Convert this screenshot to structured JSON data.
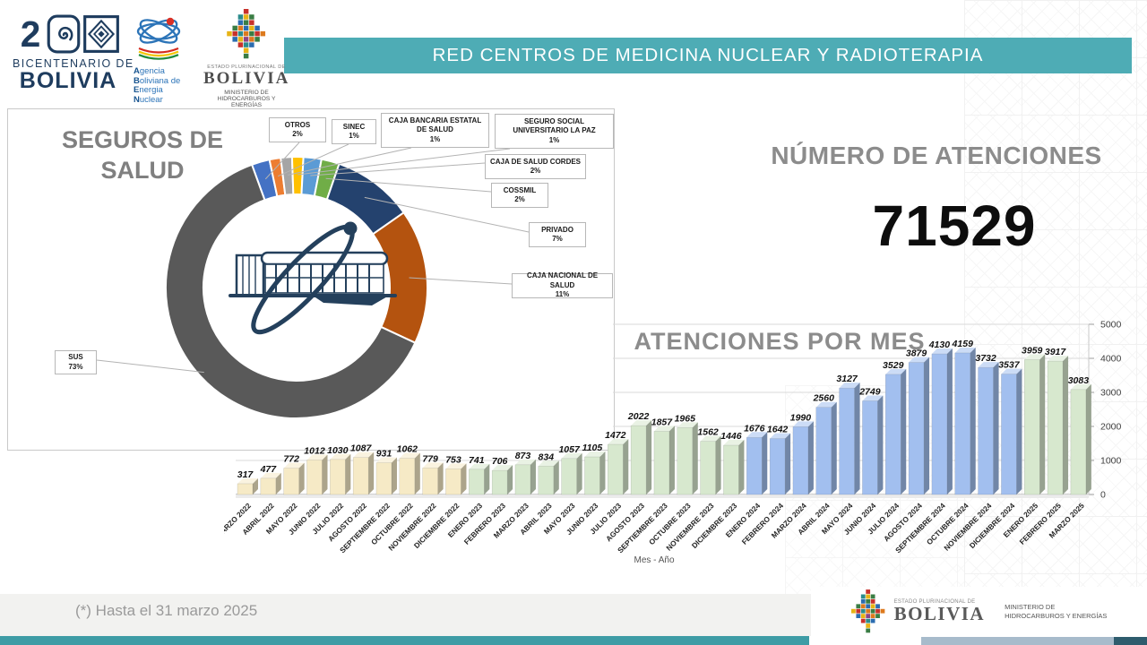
{
  "header": {
    "title": "RED CENTROS DE MEDICINA NUCLEAR Y RADIOTERAPIA",
    "accent_color": "#4EACB5"
  },
  "logos": {
    "bicentenario": {
      "icon": "bicentenario-200-logo",
      "line1": "BICENTENARIO DE",
      "line2": "BOLIVIA"
    },
    "aben": {
      "icon": "atom-logo",
      "line1": "Agencia",
      "line2": "Boliviana de",
      "line3": "Energia",
      "line4": "Nuclear"
    },
    "ministerio": {
      "icon": "chakana-logo",
      "estado": "ESTADO PLURINACIONAL DE",
      "bolivia": "BOLIVIA",
      "ministerio_line1": "MINISTERIO DE",
      "ministerio_line2": "HIDROCARBUROS Y ENERGÍAS"
    }
  },
  "kpi": {
    "title": "NÚMERO DE ATENCIONES",
    "value": "71529"
  },
  "chart_data": [
    {
      "type": "pie",
      "subtype": "donut",
      "title": "SEGUROS DE SALUD",
      "unit": "%",
      "segments": [
        {
          "label": "OTROS",
          "value": 2,
          "pct_label": "2%",
          "color": "#4472C4"
        },
        {
          "label": "SINEC",
          "value": 1,
          "pct_label": "1%",
          "color": "#ED7D31"
        },
        {
          "label": "CAJA BANCARIA ESTATAL DE SALUD",
          "value": 1,
          "pct_label": "1%",
          "color": "#A5A5A5"
        },
        {
          "label": "SEGURO SOCIAL UNIVERSITARIO LA PAZ",
          "value": 1,
          "pct_label": "1%",
          "color": "#FFC000"
        },
        {
          "label": "CAJA DE SALUD CORDES",
          "value": 2,
          "pct_label": "2%",
          "color": "#5B9BD5"
        },
        {
          "label": "COSSMIL",
          "value": 2,
          "pct_label": "2%",
          "color": "#70AD47"
        },
        {
          "label": "PRIVADO",
          "value": 7,
          "pct_label": "7%",
          "color": "#24426E"
        },
        {
          "label": "CAJA NACIONAL DE SALUD",
          "value": 11,
          "pct_label": "11%",
          "color": "#B4530F"
        },
        {
          "label": "SUS",
          "value": 73,
          "pct_label": "73%",
          "color": "#595959"
        }
      ]
    },
    {
      "type": "bar",
      "title": "ATENCIONES POR MES",
      "xlabel": "Mes - Año",
      "ylim": [
        0,
        5000
      ],
      "yticks": [
        0,
        1000,
        2000,
        3000,
        4000,
        5000
      ],
      "grid": true,
      "categories": [
        "MARZO 2022",
        "ABRIL 2022",
        "MAYO 2022",
        "JUNIO 2022",
        "JULIO 2022",
        "AGOSTO 2022",
        "SEPTIEMBRE 2022",
        "OCTUBRE 2022",
        "NOVIEMBRE 2022",
        "DICIEMBRE 2022",
        "ENERO 2023",
        "FEBRERO 2023",
        "MARZO 2023",
        "ABRIL 2023",
        "MAYO 2023",
        "JUNIO 2023",
        "JULIO 2023",
        "AGOSTO 2023",
        "SEPTIEMBRE 2023",
        "OCTUBRE 2023",
        "NOVIEMBRE 2023",
        "DICIEMBRE 2023",
        "ENERO 2024",
        "FEBRERO 2024",
        "MARZO 2024",
        "ABRIL 2024",
        "MAYO 2024",
        "JUNIO 2024",
        "JULIO 2024",
        "AGOSTO 2024",
        "SEPTIEMBRE 2024",
        "OCTUBRE 2024",
        "NOVIEMBRE 2024",
        "DICIEMBRE 2024",
        "ENERO 2025",
        "FEBRERO 2025",
        "MARZO 2025"
      ],
      "values": [
        317,
        477,
        772,
        1012,
        1030,
        1087,
        931,
        1062,
        779,
        753,
        741,
        706,
        873,
        834,
        1057,
        1105,
        1472,
        2022,
        1857,
        1965,
        1562,
        1446,
        1676,
        1642,
        1990,
        2560,
        3127,
        2749,
        3529,
        3879,
        4130,
        4159,
        3732,
        3537,
        3959,
        3917,
        3083
      ],
      "year_colors": {
        "2022": "#F6EAC6",
        "2023": "#D7E8CE",
        "2024": "#A2BFEF",
        "2025": "#D7E8CE"
      }
    }
  ],
  "footer": {
    "note": "(*) Hasta el 31 marzo 2025",
    "ministerio": {
      "estado": "ESTADO PLURINACIONAL DE",
      "bolivia": "BOLIVIA",
      "ministerio_line1": "MINISTERIO DE",
      "ministerio_line2": "HIDROCARBUROS Y ENERGÍAS"
    }
  }
}
